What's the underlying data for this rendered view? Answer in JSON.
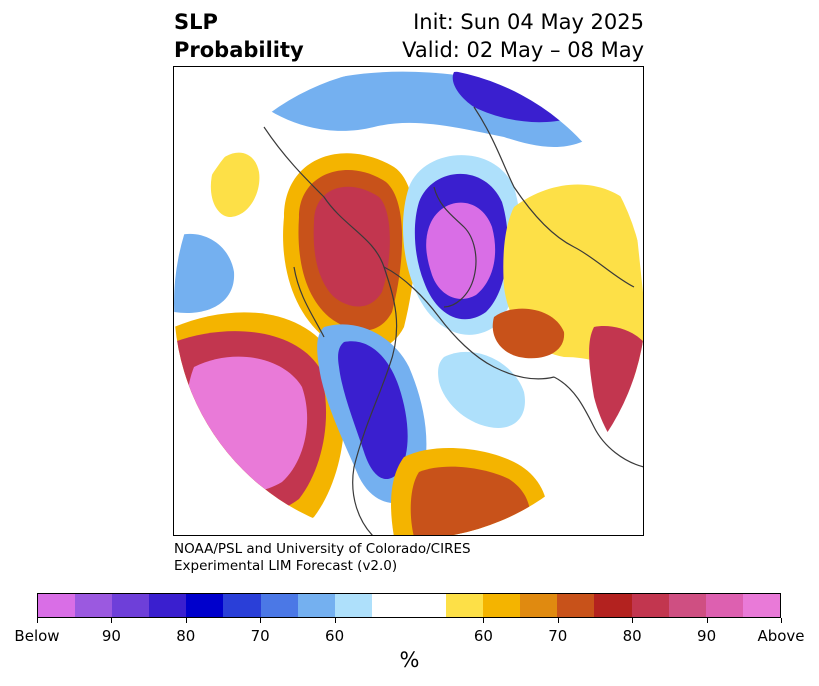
{
  "header": {
    "title_line1": "SLP",
    "title_line2": "Probability",
    "init": "Init: Sun 04 May 2025",
    "valid": "Valid: 02 May – 08 May"
  },
  "credit": {
    "line1": "NOAA/PSL and University of Colorado/CIRES",
    "line2": "Experimental LIM Forecast (v2.0)"
  },
  "colorbar": {
    "colors": [
      "#d96ee6",
      "#9b59e0",
      "#6e3fd9",
      "#3a1fcf",
      "#0000cc",
      "#2a3fd8",
      "#4b78e6",
      "#74b0f0",
      "#aee0fb",
      "#ffffff",
      "#ffffff",
      "#fde047",
      "#f4b400",
      "#e08a10",
      "#c8521a",
      "#b3221f",
      "#c2364f",
      "#cf4f82",
      "#dd60b0",
      "#e97ad8"
    ],
    "labels": [
      "Below",
      "90",
      "80",
      "70",
      "60",
      "60",
      "70",
      "80",
      "90",
      "Above"
    ],
    "unit": "%"
  },
  "map_colors": {
    "below_strong": "#d96ee6",
    "below_mid": "#3a1fcf",
    "below_weak": "#74b0f0",
    "below_faint": "#aee0fb",
    "above_faint": "#fde047",
    "above_weak": "#f4b400",
    "above_mid": "#c8521a",
    "above_strong": "#c2364f",
    "above_max": "#e97ad8"
  }
}
